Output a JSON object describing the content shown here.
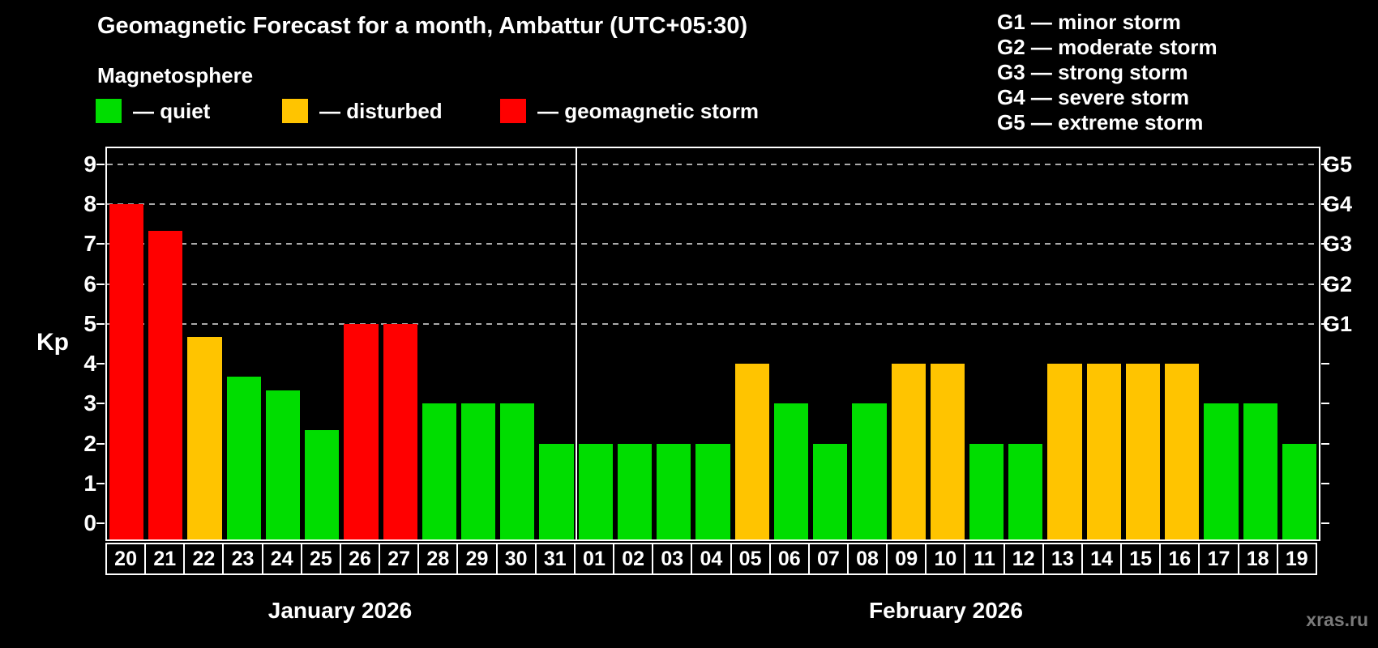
{
  "title": "Geomagnetic Forecast for a month, Ambattur (UTC+05:30)",
  "subtitle": "Magnetosphere",
  "legend": {
    "items": [
      {
        "label": "— quiet",
        "level": "quiet"
      },
      {
        "label": "— disturbed",
        "level": "disturbed"
      },
      {
        "label": "— geomagnetic storm",
        "level": "storm"
      }
    ]
  },
  "g_scale_legend": [
    "G1 — minor storm",
    "G2 — moderate storm",
    "G3 — strong storm",
    "G4 — severe storm",
    "G5 — extreme storm"
  ],
  "colors": {
    "quiet": "#00DD00",
    "disturbed": "#FFC400",
    "storm": "#FF0000",
    "grid": "#AAAAAA",
    "axis": "#FFFFFF",
    "watermark": "#7A7A7A"
  },
  "watermark": "xras.ru",
  "chart_data": {
    "type": "bar",
    "title": "Geomagnetic Forecast for a month, Ambattur (UTC+05:30)",
    "ylabel": "Kp",
    "ylim": [
      -0.4,
      9.4
    ],
    "y_ticks": [
      0,
      1,
      2,
      3,
      4,
      5,
      6,
      7,
      8,
      9
    ],
    "gridlines_at": [
      5,
      6,
      7,
      8,
      9
    ],
    "grid": "dashed horizontal at G-storm levels only",
    "legend_position": "top",
    "right_axis_labels": [
      {
        "text": "G1",
        "value": 5
      },
      {
        "text": "G2",
        "value": 6
      },
      {
        "text": "G3",
        "value": 7
      },
      {
        "text": "G4",
        "value": 8
      },
      {
        "text": "G5",
        "value": 9
      }
    ],
    "months": [
      {
        "label": "January 2026",
        "days": 12
      },
      {
        "label": "February 2026",
        "days": 19
      }
    ],
    "bars": [
      {
        "day": "20",
        "month": "January 2026",
        "value": 8,
        "level": "storm"
      },
      {
        "day": "21",
        "month": "January 2026",
        "value": 7.33,
        "level": "storm"
      },
      {
        "day": "22",
        "month": "January 2026",
        "value": 4.67,
        "level": "disturbed"
      },
      {
        "day": "23",
        "month": "January 2026",
        "value": 3.67,
        "level": "quiet"
      },
      {
        "day": "24",
        "month": "January 2026",
        "value": 3.33,
        "level": "quiet"
      },
      {
        "day": "25",
        "month": "January 2026",
        "value": 2.33,
        "level": "quiet"
      },
      {
        "day": "26",
        "month": "January 2026",
        "value": 5,
        "level": "storm"
      },
      {
        "day": "27",
        "month": "January 2026",
        "value": 5,
        "level": "storm"
      },
      {
        "day": "28",
        "month": "January 2026",
        "value": 3,
        "level": "quiet"
      },
      {
        "day": "29",
        "month": "January 2026",
        "value": 3,
        "level": "quiet"
      },
      {
        "day": "30",
        "month": "January 2026",
        "value": 3,
        "level": "quiet"
      },
      {
        "day": "31",
        "month": "January 2026",
        "value": 2,
        "level": "quiet"
      },
      {
        "day": "01",
        "month": "February 2026",
        "value": 2,
        "level": "quiet"
      },
      {
        "day": "02",
        "month": "February 2026",
        "value": 2,
        "level": "quiet"
      },
      {
        "day": "03",
        "month": "February 2026",
        "value": 2,
        "level": "quiet"
      },
      {
        "day": "04",
        "month": "February 2026",
        "value": 2,
        "level": "quiet"
      },
      {
        "day": "05",
        "month": "February 2026",
        "value": 4,
        "level": "disturbed"
      },
      {
        "day": "06",
        "month": "February 2026",
        "value": 3,
        "level": "quiet"
      },
      {
        "day": "07",
        "month": "February 2026",
        "value": 2,
        "level": "quiet"
      },
      {
        "day": "08",
        "month": "February 2026",
        "value": 3,
        "level": "quiet"
      },
      {
        "day": "09",
        "month": "February 2026",
        "value": 4,
        "level": "disturbed"
      },
      {
        "day": "10",
        "month": "February 2026",
        "value": 4,
        "level": "disturbed"
      },
      {
        "day": "11",
        "month": "February 2026",
        "value": 2,
        "level": "quiet"
      },
      {
        "day": "12",
        "month": "February 2026",
        "value": 2,
        "level": "quiet"
      },
      {
        "day": "13",
        "month": "February 2026",
        "value": 4,
        "level": "disturbed"
      },
      {
        "day": "14",
        "month": "February 2026",
        "value": 4,
        "level": "disturbed"
      },
      {
        "day": "15",
        "month": "February 2026",
        "value": 4,
        "level": "disturbed"
      },
      {
        "day": "16",
        "month": "February 2026",
        "value": 4,
        "level": "disturbed"
      },
      {
        "day": "17",
        "month": "February 2026",
        "value": 3,
        "level": "quiet"
      },
      {
        "day": "18",
        "month": "February 2026",
        "value": 3,
        "level": "quiet"
      },
      {
        "day": "19",
        "month": "February 2026",
        "value": 2,
        "level": "quiet"
      }
    ]
  }
}
